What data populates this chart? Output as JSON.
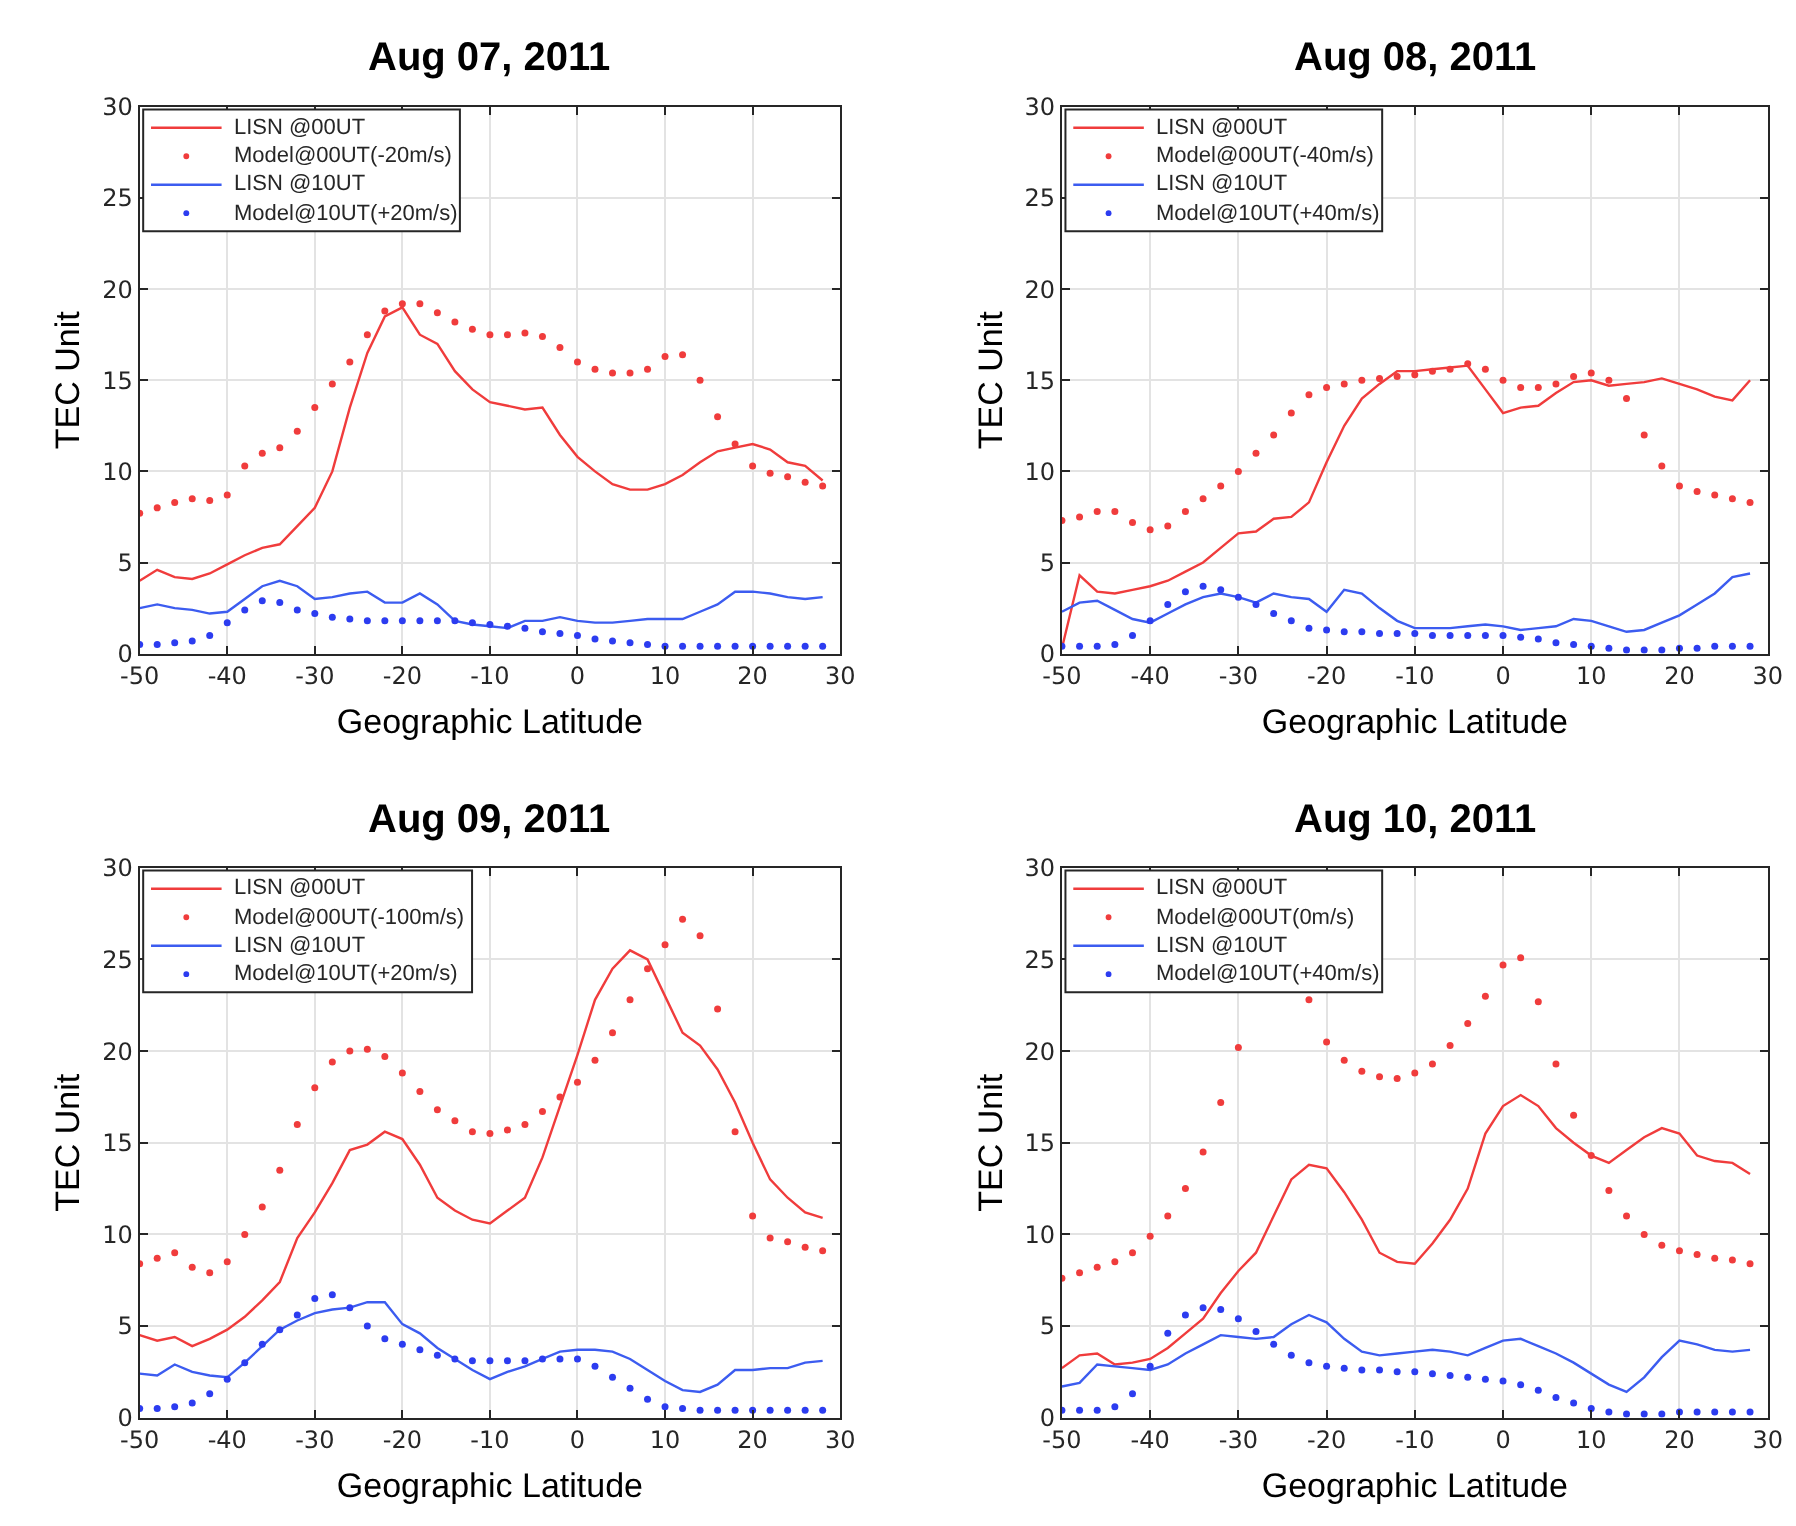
{
  "chart_data": [
    {
      "type": "line",
      "title": "Aug 07, 2011",
      "xlabel": "Geographic Latitude",
      "ylabel": "TEC Unit",
      "xlim": [
        -50,
        30
      ],
      "xticks": [
        -50,
        -40,
        -30,
        -20,
        -10,
        0,
        10,
        20,
        30
      ],
      "ylim": [
        0,
        30
      ],
      "yticks": [
        0,
        5,
        10,
        15,
        20,
        25,
        30
      ],
      "grid": true,
      "legend": "top left",
      "x": [
        -50,
        -48,
        -46,
        -44,
        -42,
        -40,
        -38,
        -36,
        -34,
        -32,
        -30,
        -28,
        -26,
        -24,
        -22,
        -20,
        -18,
        -16,
        -14,
        -12,
        -10,
        -8,
        -6,
        -4,
        -2,
        0,
        2,
        4,
        6,
        8,
        10,
        12,
        14,
        16,
        18,
        20,
        22,
        24,
        26,
        28
      ],
      "series": [
        {
          "name": "LISN @00UT",
          "color": "#f03c3c",
          "values": [
            4.0,
            4.6,
            4.2,
            4.1,
            4.4,
            4.9,
            5.4,
            5.8,
            6.0,
            7.0,
            8.0,
            10.0,
            13.5,
            16.5,
            18.5,
            19.0,
            17.5,
            17.0,
            15.5,
            14.5,
            13.8,
            13.6,
            13.4,
            13.5,
            12.0,
            10.8,
            10.0,
            9.3,
            9.0,
            9.0,
            9.3,
            9.8,
            10.5,
            11.1,
            11.3,
            11.5,
            11.2,
            10.5,
            10.3,
            9.5
          ]
        },
        {
          "name": "Model@00UT(-20m/s)",
          "type": "scatter",
          "color": "#f03c3c",
          "values": [
            7.7,
            8.0,
            8.3,
            8.5,
            8.4,
            8.7,
            10.3,
            11.0,
            11.3,
            12.2,
            13.5,
            14.8,
            16.0,
            17.5,
            18.8,
            19.2,
            19.2,
            18.7,
            18.2,
            17.8,
            17.5,
            17.5,
            17.6,
            17.4,
            16.8,
            16.0,
            15.6,
            15.4,
            15.4,
            15.6,
            16.3,
            16.4,
            15.0,
            13.0,
            11.5,
            10.3,
            9.9,
            9.7,
            9.4,
            9.2
          ]
        },
        {
          "name": "LISN @10UT",
          "color": "#3c5cf0",
          "values": [
            2.5,
            2.7,
            2.5,
            2.4,
            2.2,
            2.3,
            3.0,
            3.7,
            4.0,
            3.7,
            3.0,
            3.1,
            3.3,
            3.4,
            2.8,
            2.8,
            3.3,
            2.7,
            1.8,
            1.6,
            1.5,
            1.4,
            1.8,
            1.8,
            2.0,
            1.8,
            1.7,
            1.7,
            1.8,
            1.9,
            1.9,
            1.9,
            2.3,
            2.7,
            3.4,
            3.4,
            3.3,
            3.1,
            3.0,
            3.1
          ]
        },
        {
          "name": "Model@10UT(+20m/s)",
          "type": "scatter",
          "color": "#2c3cf0",
          "values": [
            0.5,
            0.5,
            0.6,
            0.7,
            1.0,
            1.7,
            2.4,
            2.9,
            2.8,
            2.4,
            2.2,
            2.0,
            1.9,
            1.8,
            1.8,
            1.8,
            1.8,
            1.8,
            1.8,
            1.7,
            1.6,
            1.5,
            1.4,
            1.2,
            1.1,
            1.0,
            0.8,
            0.7,
            0.6,
            0.5,
            0.4,
            0.4,
            0.4,
            0.4,
            0.4,
            0.4,
            0.4,
            0.4,
            0.4,
            0.4
          ]
        }
      ]
    },
    {
      "type": "line",
      "title": "Aug 08, 2011",
      "xlabel": "Geographic Latitude",
      "ylabel": "TEC Unit",
      "xlim": [
        -50,
        30
      ],
      "xticks": [
        -50,
        -40,
        -30,
        -20,
        -10,
        0,
        10,
        20,
        30
      ],
      "ylim": [
        0,
        30
      ],
      "yticks": [
        0,
        5,
        10,
        15,
        20,
        25,
        30
      ],
      "grid": true,
      "legend": "top left",
      "x": [
        -50,
        -48,
        -46,
        -44,
        -42,
        -40,
        -38,
        -36,
        -34,
        -32,
        -30,
        -28,
        -26,
        -24,
        -22,
        -20,
        -18,
        -16,
        -14,
        -12,
        -10,
        -8,
        -6,
        -4,
        -2,
        0,
        2,
        4,
        6,
        8,
        10,
        12,
        14,
        16,
        18,
        20,
        22,
        24,
        26,
        28
      ],
      "series": [
        {
          "name": "LISN @00UT",
          "color": "#f03c3c",
          "values": [
            0.3,
            4.3,
            3.4,
            3.3,
            3.5,
            3.7,
            4.0,
            4.5,
            5.0,
            5.8,
            6.6,
            6.7,
            7.4,
            7.5,
            8.3,
            10.5,
            12.5,
            14.0,
            14.8,
            15.5,
            15.5,
            15.6,
            15.7,
            15.8,
            14.5,
            13.2,
            13.5,
            13.6,
            14.3,
            14.9,
            15.0,
            14.7,
            14.8,
            14.9,
            15.1,
            14.8,
            14.5,
            14.1,
            13.9,
            15.0
          ]
        },
        {
          "name": "Model@00UT(-40m/s)",
          "type": "scatter",
          "color": "#f03c3c",
          "values": [
            7.3,
            7.5,
            7.8,
            7.8,
            7.2,
            6.8,
            7.0,
            7.8,
            8.5,
            9.2,
            10.0,
            11.0,
            12.0,
            13.2,
            14.2,
            14.6,
            14.8,
            15.0,
            15.1,
            15.2,
            15.3,
            15.5,
            15.6,
            15.9,
            15.6,
            15.0,
            14.6,
            14.6,
            14.8,
            15.2,
            15.4,
            15.0,
            14.0,
            12.0,
            10.3,
            9.2,
            8.9,
            8.7,
            8.5,
            8.3
          ]
        },
        {
          "name": "LISN @10UT",
          "color": "#3c5cf0",
          "values": [
            2.3,
            2.8,
            2.9,
            2.4,
            1.9,
            1.7,
            2.2,
            2.7,
            3.1,
            3.3,
            3.1,
            2.8,
            3.3,
            3.1,
            3.0,
            2.3,
            3.5,
            3.3,
            2.5,
            1.8,
            1.4,
            1.4,
            1.4,
            1.5,
            1.6,
            1.5,
            1.3,
            1.4,
            1.5,
            1.9,
            1.8,
            1.5,
            1.2,
            1.3,
            1.7,
            2.1,
            2.7,
            3.3,
            4.2,
            4.4
          ]
        },
        {
          "name": "Model@10UT(+40m/s)",
          "type": "scatter",
          "color": "#2c3cf0",
          "values": [
            0.4,
            0.4,
            0.4,
            0.5,
            1.0,
            1.8,
            2.7,
            3.4,
            3.7,
            3.5,
            3.1,
            2.7,
            2.2,
            1.8,
            1.4,
            1.3,
            1.2,
            1.2,
            1.1,
            1.1,
            1.1,
            1.0,
            1.0,
            1.0,
            1.0,
            1.0,
            0.9,
            0.8,
            0.6,
            0.5,
            0.4,
            0.3,
            0.2,
            0.2,
            0.2,
            0.3,
            0.3,
            0.4,
            0.4,
            0.4
          ]
        }
      ]
    },
    {
      "type": "line",
      "title": "Aug 09, 2011",
      "xlabel": "Geographic Latitude",
      "ylabel": "TEC Unit",
      "xlim": [
        -50,
        30
      ],
      "xticks": [
        -50,
        -40,
        -30,
        -20,
        -10,
        0,
        10,
        20,
        30
      ],
      "ylim": [
        0,
        30
      ],
      "yticks": [
        0,
        5,
        10,
        15,
        20,
        25,
        30
      ],
      "grid": true,
      "legend": "top left",
      "x": [
        -50,
        -48,
        -46,
        -44,
        -42,
        -40,
        -38,
        -36,
        -34,
        -32,
        -30,
        -28,
        -26,
        -24,
        -22,
        -20,
        -18,
        -16,
        -14,
        -12,
        -10,
        -8,
        -6,
        -4,
        -2,
        0,
        2,
        4,
        6,
        8,
        10,
        12,
        14,
        16,
        18,
        20,
        22,
        24,
        26,
        28
      ],
      "series": [
        {
          "name": "LISN @00UT",
          "color": "#f03c3c",
          "values": [
            4.5,
            4.2,
            4.4,
            3.9,
            4.3,
            4.8,
            5.5,
            6.4,
            7.4,
            9.8,
            11.2,
            12.8,
            14.6,
            14.9,
            15.6,
            15.2,
            13.8,
            12.0,
            11.3,
            10.8,
            10.6,
            11.3,
            12.0,
            14.2,
            17.0,
            19.8,
            22.8,
            24.5,
            25.5,
            25.0,
            23.0,
            21.0,
            20.3,
            19.0,
            17.2,
            15.0,
            13.0,
            12.0,
            11.2,
            10.9
          ]
        },
        {
          "name": "Model@00UT(-100m/s)",
          "type": "scatter",
          "color": "#f03c3c",
          "values": [
            8.4,
            8.7,
            9.0,
            8.2,
            7.9,
            8.5,
            10.0,
            11.5,
            13.5,
            16.0,
            18.0,
            19.4,
            20.0,
            20.1,
            19.7,
            18.8,
            17.8,
            16.8,
            16.2,
            15.6,
            15.5,
            15.7,
            16.0,
            16.7,
            17.5,
            18.3,
            19.5,
            21.0,
            22.8,
            24.5,
            25.8,
            27.2,
            26.3,
            22.3,
            15.6,
            11.0,
            9.8,
            9.6,
            9.3,
            9.1
          ]
        },
        {
          "name": "LISN @10UT",
          "color": "#3c5cf0",
          "values": [
            2.4,
            2.3,
            2.9,
            2.5,
            2.3,
            2.2,
            3.0,
            3.9,
            4.8,
            5.3,
            5.7,
            5.9,
            6.0,
            6.3,
            6.3,
            5.1,
            4.6,
            3.8,
            3.2,
            2.6,
            2.1,
            2.5,
            2.8,
            3.2,
            3.6,
            3.7,
            3.7,
            3.6,
            3.2,
            2.6,
            2.0,
            1.5,
            1.4,
            1.8,
            2.6,
            2.6,
            2.7,
            2.7,
            3.0,
            3.1
          ]
        },
        {
          "name": "Model@10UT(+20m/s)",
          "type": "scatter",
          "color": "#2c3cf0",
          "values": [
            0.5,
            0.5,
            0.6,
            0.8,
            1.3,
            2.1,
            3.0,
            4.0,
            4.8,
            5.6,
            6.5,
            6.7,
            6.0,
            5.0,
            4.3,
            4.0,
            3.7,
            3.4,
            3.2,
            3.1,
            3.1,
            3.1,
            3.1,
            3.2,
            3.2,
            3.2,
            2.8,
            2.2,
            1.6,
            1.0,
            0.6,
            0.5,
            0.4,
            0.4,
            0.4,
            0.4,
            0.4,
            0.4,
            0.4,
            0.4
          ]
        }
      ]
    },
    {
      "type": "line",
      "title": "Aug 10, 2011",
      "xlabel": "Geographic Latitude",
      "ylabel": "TEC Unit",
      "xlim": [
        -50,
        30
      ],
      "xticks": [
        -50,
        -40,
        -30,
        -20,
        -10,
        0,
        10,
        20,
        30
      ],
      "ylim": [
        0,
        30
      ],
      "yticks": [
        0,
        5,
        10,
        15,
        20,
        25,
        30
      ],
      "grid": true,
      "legend": "top left",
      "x": [
        -50,
        -48,
        -46,
        -44,
        -42,
        -40,
        -38,
        -36,
        -34,
        -32,
        -30,
        -28,
        -26,
        -24,
        -22,
        -20,
        -18,
        -16,
        -14,
        -12,
        -10,
        -8,
        -6,
        -4,
        -2,
        0,
        2,
        4,
        6,
        8,
        10,
        12,
        14,
        16,
        18,
        20,
        22,
        24,
        26,
        28
      ],
      "series": [
        {
          "name": "LISN @00UT",
          "color": "#f03c3c",
          "values": [
            2.7,
            3.4,
            3.5,
            2.9,
            3.0,
            3.2,
            3.8,
            4.6,
            5.4,
            6.8,
            8.0,
            9.0,
            11.0,
            13.0,
            13.8,
            13.6,
            12.3,
            10.8,
            9.0,
            8.5,
            8.4,
            9.5,
            10.8,
            12.5,
            15.5,
            17.0,
            17.6,
            17.0,
            15.8,
            15.0,
            14.3,
            13.9,
            14.6,
            15.3,
            15.8,
            15.5,
            14.3,
            14.0,
            13.9,
            13.3
          ]
        },
        {
          "name": "Model@00UT(0m/s)",
          "type": "scatter",
          "color": "#f03c3c",
          "values": [
            7.6,
            7.9,
            8.2,
            8.5,
            9.0,
            9.9,
            11.0,
            12.5,
            14.5,
            17.2,
            20.2,
            null,
            null,
            null,
            22.8,
            20.5,
            19.5,
            18.9,
            18.6,
            18.5,
            18.8,
            19.3,
            20.3,
            21.5,
            23.0,
            24.7,
            25.1,
            22.7,
            19.3,
            16.5,
            14.3,
            12.4,
            11.0,
            10.0,
            9.4,
            9.1,
            8.9,
            8.7,
            8.6,
            8.4
          ]
        },
        {
          "name": "LISN @10UT",
          "color": "#3c5cf0",
          "values": [
            1.7,
            1.9,
            2.9,
            2.8,
            2.7,
            2.6,
            2.9,
            3.5,
            4.0,
            4.5,
            4.4,
            4.3,
            4.4,
            5.1,
            5.6,
            5.2,
            4.3,
            3.6,
            3.4,
            3.5,
            3.6,
            3.7,
            3.6,
            3.4,
            3.8,
            4.2,
            4.3,
            3.9,
            3.5,
            3.0,
            2.4,
            1.8,
            1.4,
            2.2,
            3.3,
            4.2,
            4.0,
            3.7,
            3.6,
            3.7
          ]
        },
        {
          "name": "Model@10UT(+40m/s)",
          "type": "scatter",
          "color": "#2c3cf0",
          "values": [
            0.4,
            0.4,
            0.4,
            0.6,
            1.3,
            2.8,
            4.6,
            5.6,
            6.0,
            5.9,
            5.4,
            4.7,
            4.0,
            3.4,
            3.0,
            2.8,
            2.7,
            2.6,
            2.6,
            2.5,
            2.5,
            2.4,
            2.3,
            2.2,
            2.1,
            2.0,
            1.8,
            1.5,
            1.1,
            0.8,
            0.5,
            0.3,
            0.2,
            0.2,
            0.2,
            0.3,
            0.3,
            0.3,
            0.3,
            0.3
          ]
        }
      ]
    }
  ]
}
